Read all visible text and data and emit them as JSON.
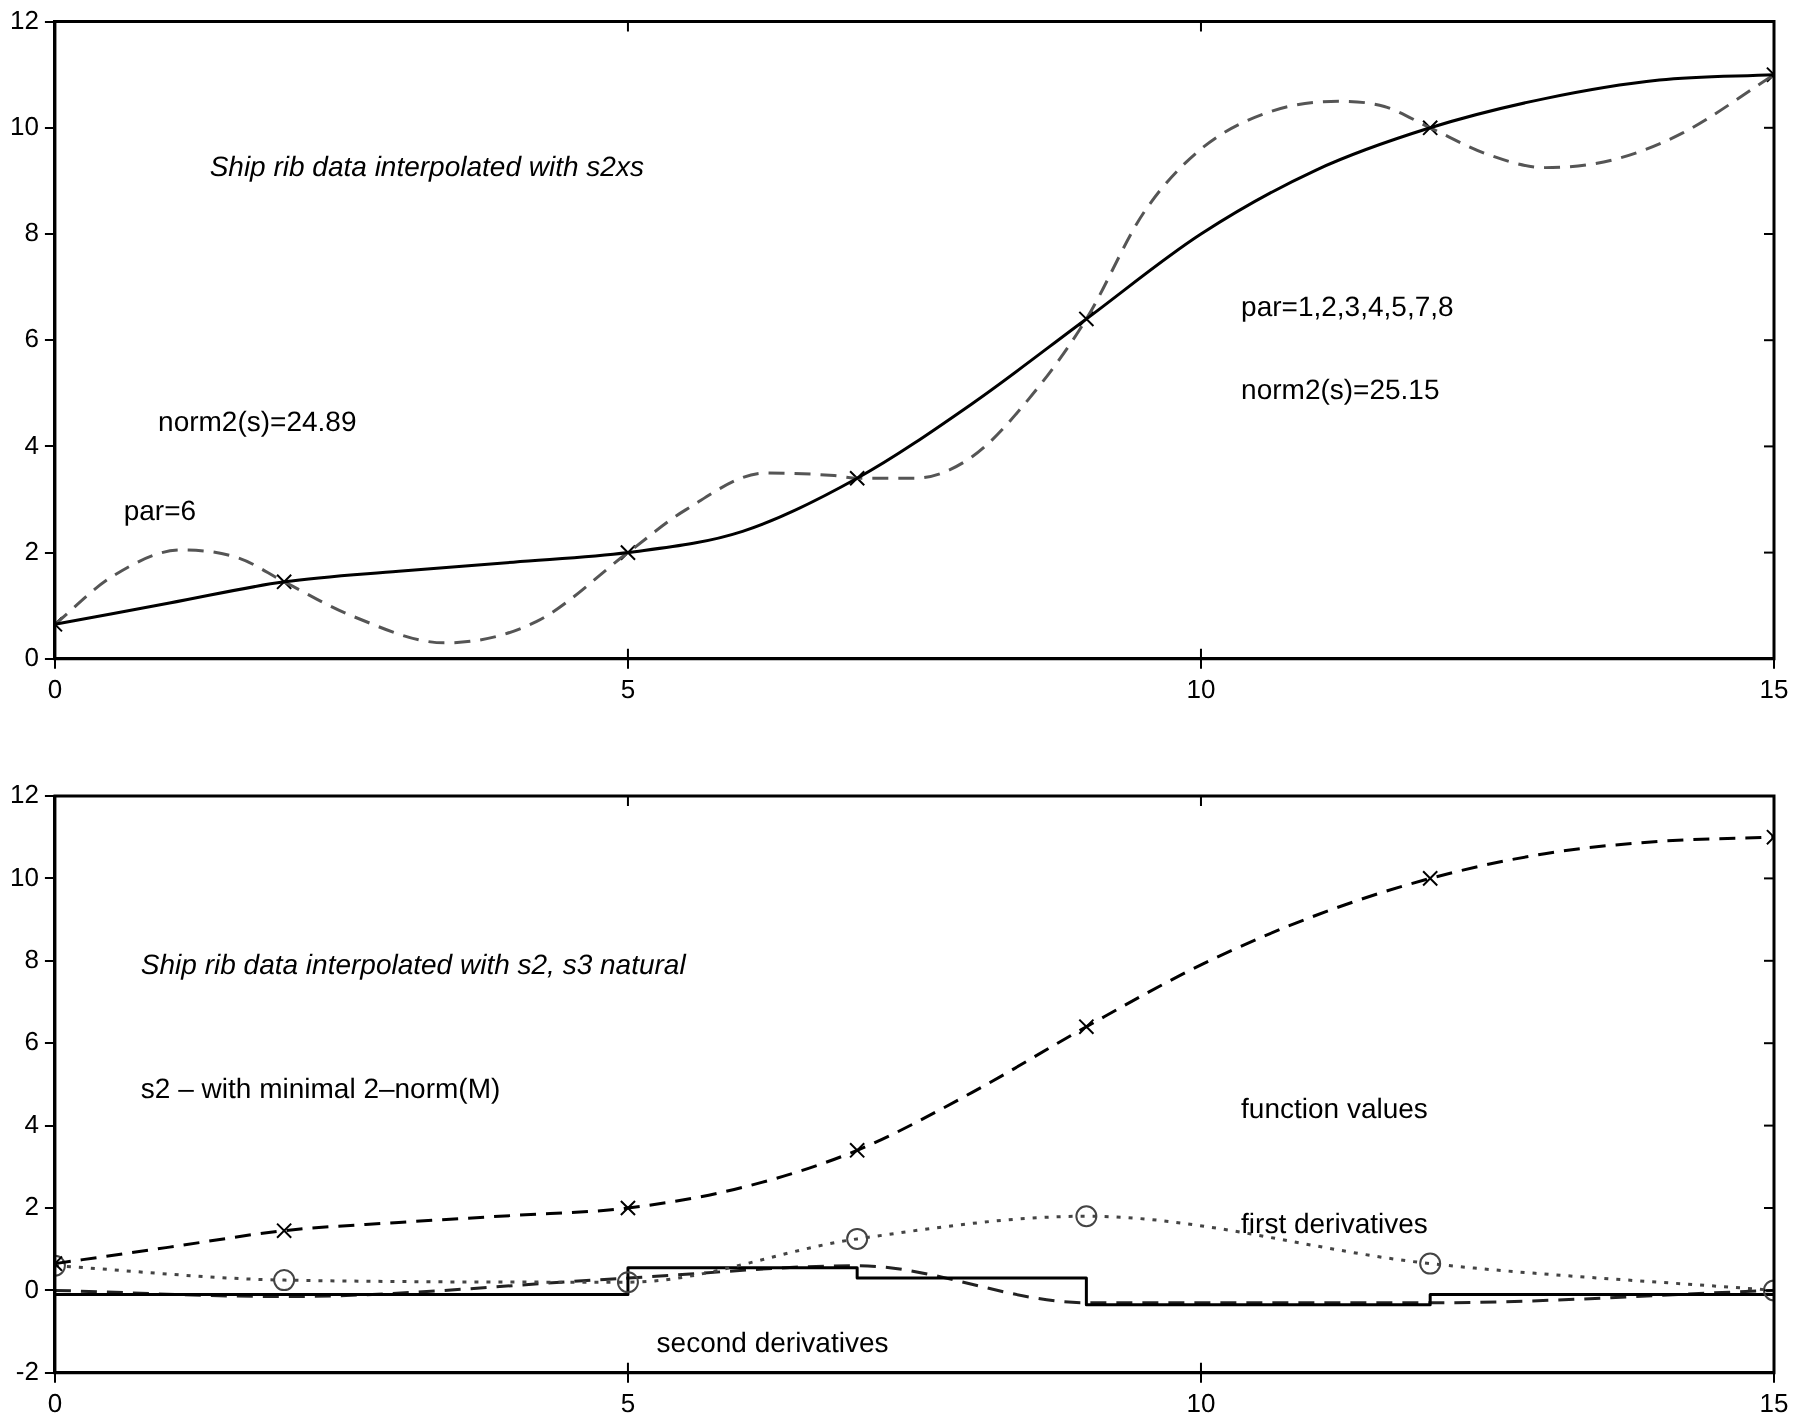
{
  "chart_data": [
    {
      "type": "line",
      "xlim": [
        0,
        15
      ],
      "xticks": [
        0,
        5,
        10,
        15
      ],
      "ylim": [
        0,
        12
      ],
      "yticks": [
        0,
        2,
        4,
        6,
        8,
        10,
        12
      ],
      "grid": false,
      "legend": false,
      "annotations": [
        "Ship rib data interpolated with s2xs",
        "norm2(s)=24.89",
        "par=6",
        "par=1,2,3,4,5,7,8",
        "norm2(s)=25.15"
      ],
      "series": [
        {
          "type": "line",
          "color": "#000000",
          "line_style": "solid",
          "marker": "none",
          "x": [
            0,
            1,
            2,
            3,
            4,
            5,
            6,
            7,
            8,
            9,
            10,
            11,
            12,
            13,
            14,
            15
          ],
          "values": [
            0.65,
            1.05,
            1.45,
            1.65,
            1.82,
            2.0,
            2.4,
            3.4,
            4.8,
            6.4,
            8.0,
            9.2,
            10.0,
            10.55,
            10.9,
            11.0
          ]
        },
        {
          "type": "line",
          "color": "#555555",
          "line_style": "dashed",
          "marker": "none",
          "x": [
            0,
            0.5,
            1.1,
            1.6,
            2,
            2.6,
            3.4,
            4.2,
            5,
            5.5,
            6.2,
            6.8,
            7,
            7.5,
            8,
            8.5,
            9,
            9.5,
            10,
            10.6,
            11.2,
            11.6,
            12,
            12.5,
            13,
            13.6,
            14.2,
            15
          ],
          "values": [
            0.65,
            1.55,
            2.05,
            1.9,
            1.45,
            0.8,
            0.3,
            0.7,
            2.0,
            2.8,
            3.5,
            3.45,
            3.4,
            3.4,
            3.8,
            4.9,
            6.4,
            8.4,
            9.6,
            10.3,
            10.5,
            10.4,
            10.0,
            9.5,
            9.25,
            9.4,
            9.9,
            11.0
          ]
        },
        {
          "type": "scatter",
          "color": "#000000",
          "marker": "cross",
          "x": [
            0,
            2,
            5,
            7,
            9,
            12,
            15
          ],
          "values": [
            0.65,
            1.45,
            2.0,
            3.4,
            6.4,
            10.0,
            11.0
          ]
        }
      ]
    },
    {
      "type": "line",
      "xlim": [
        0,
        15
      ],
      "xticks": [
        0,
        5,
        10,
        15
      ],
      "ylim": [
        -2,
        12
      ],
      "yticks": [
        -2,
        0,
        2,
        4,
        6,
        8,
        10,
        12
      ],
      "grid": false,
      "legend": false,
      "annotations": [
        "Ship rib data interpolated with s2, s3 natural",
        "s2 – with minimal 2–norm(M)",
        "function values",
        "first derivatives",
        "second derivatives"
      ],
      "series": [
        {
          "type": "line",
          "color": "#000000",
          "line_style": "dashed",
          "marker": "none",
          "x": [
            0,
            1,
            2,
            3,
            4,
            5,
            6,
            7,
            8,
            9,
            10,
            11,
            12,
            13,
            14,
            15
          ],
          "values": [
            0.65,
            1.05,
            1.45,
            1.65,
            1.82,
            2.0,
            2.5,
            3.4,
            4.8,
            6.4,
            7.9,
            9.1,
            10.0,
            10.6,
            10.9,
            11.0
          ]
        },
        {
          "type": "scatter",
          "color": "#000000",
          "marker": "cross",
          "x": [
            0,
            2,
            5,
            7,
            9,
            12,
            15
          ],
          "values": [
            0.65,
            1.45,
            2.0,
            3.4,
            6.4,
            10.0,
            11.0
          ]
        },
        {
          "type": "line",
          "color": "#444444",
          "line_style": "dotted",
          "marker": "circle",
          "x": [
            0,
            2,
            5,
            7,
            9,
            12,
            15
          ],
          "values": [
            0.6,
            0.25,
            0.2,
            1.25,
            1.8,
            0.65,
            0.0
          ]
        },
        {
          "type": "step",
          "color": "#000000",
          "line_style": "solid",
          "marker": "none",
          "x": [
            0,
            2,
            5,
            7,
            9,
            12,
            15
          ],
          "values": [
            -0.1,
            -0.1,
            0.55,
            0.3,
            -0.35,
            -0.1,
            -0.1
          ]
        },
        {
          "type": "line",
          "color": "#222222",
          "line_style": "dashed",
          "marker": "none",
          "x": [
            0,
            2,
            5,
            7,
            9,
            12,
            15
          ],
          "values": [
            0.0,
            -0.15,
            0.3,
            0.6,
            -0.3,
            -0.3,
            0.0
          ]
        }
      ]
    }
  ]
}
